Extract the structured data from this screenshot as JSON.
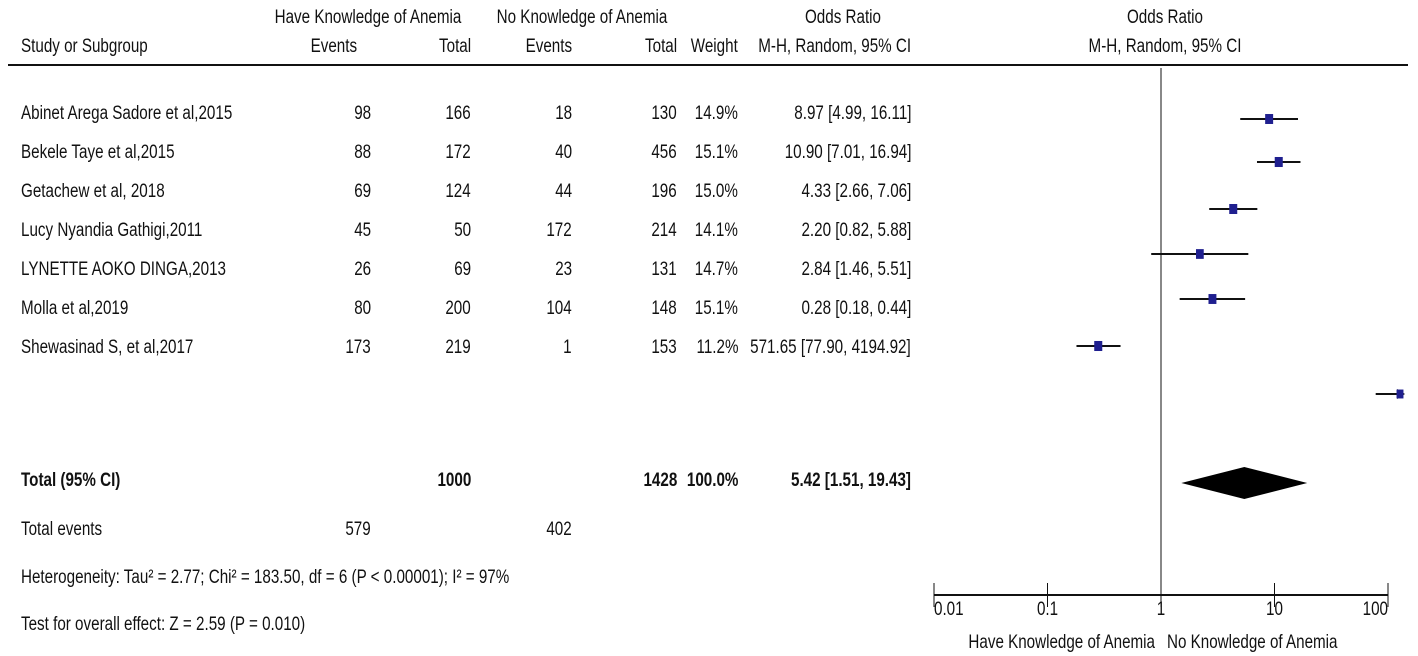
{
  "header": {
    "group1": "Have Knowledge of Anemia",
    "group2": "No Knowledge of Anemia",
    "odds_ratio": "Odds Ratio",
    "plot_title": "Odds Ratio",
    "plot_subtitle": "M-H, Random, 95% CI",
    "col_study": "Study or Subgroup",
    "col_events1": "Events",
    "col_total1": "Total",
    "col_events2": "Events",
    "col_total2": "Total",
    "col_weight": "Weight",
    "col_ci": "M-H, Random, 95% CI"
  },
  "studies": [
    {
      "name": "Abinet Arega Sadore et al,2015",
      "events1": "98",
      "total1": "166",
      "events2": "18",
      "total2": "130",
      "weight": "14.9%",
      "ci": "8.97 [4.99, 16.11]"
    },
    {
      "name": "Bekele Taye et al,2015",
      "events1": "88",
      "total1": "172",
      "events2": "40",
      "total2": "456",
      "weight": "15.1%",
      "ci": "10.90 [7.01, 16.94]"
    },
    {
      "name": "Getachew et al, 2018",
      "events1": "69",
      "total1": "124",
      "events2": "44",
      "total2": "196",
      "weight": "15.0%",
      "ci": "4.33 [2.66, 7.06]"
    },
    {
      "name": "Lucy Nyandia Gathigi,2011",
      "events1": "45",
      "total1": "50",
      "events2": "172",
      "total2": "214",
      "weight": "14.1%",
      "ci": "2.20 [0.82, 5.88]"
    },
    {
      "name": "LYNETTE AOKO DINGA,2013",
      "events1": "26",
      "total1": "69",
      "events2": "23",
      "total2": "131",
      "weight": "14.7%",
      "ci": "2.84 [1.46, 5.51]"
    },
    {
      "name": "Molla et al,2019",
      "events1": "80",
      "total1": "200",
      "events2": "104",
      "total2": "148",
      "weight": "15.1%",
      "ci": "0.28 [0.18, 0.44]"
    },
    {
      "name": "Shewasinad S, et al,2017",
      "events1": "173",
      "total1": "219",
      "events2": "1",
      "total2": "153",
      "weight": "11.2%",
      "ci": "571.65 [77.90, 4194.92]"
    }
  ],
  "total": {
    "label": "Total (95% CI)",
    "total1": "1000",
    "total2": "1428",
    "weight": "100.0%",
    "ci": "5.42 [1.51, 19.43]"
  },
  "total_events": {
    "label": "Total events",
    "events1": "579",
    "events2": "402"
  },
  "heterogeneity": "Heterogeneity: Tau² = 2.77; Chi² = 183.50, df = 6 (P < 0.00001); I² = 97%",
  "overall_effect": "Test for overall effect: Z = 2.59 (P = 0.010)",
  "axis": {
    "favours_left": "Have Knowledge of Anemia",
    "favours_right": "No Knowledge of Anemia"
  },
  "chart_data": {
    "type": "forest",
    "title": "Odds Ratio",
    "subtitle": "M-H, Random, 95% CI",
    "scale": "log",
    "xlim": [
      0.01,
      100
    ],
    "ticks": [
      0.01,
      0.1,
      1,
      10,
      100
    ],
    "tick_labels": [
      "0.01",
      "0.1",
      "1",
      "10",
      "100"
    ],
    "null_line": 1,
    "series": [
      {
        "study": "Abinet Arega Sadore et al,2015",
        "or": 8.97,
        "lower": 4.99,
        "upper": 16.11,
        "weight": 14.9
      },
      {
        "study": "Bekele Taye et al,2015",
        "or": 10.9,
        "lower": 7.01,
        "upper": 16.94,
        "weight": 15.1
      },
      {
        "study": "Getachew et al, 2018",
        "or": 4.33,
        "lower": 2.66,
        "upper": 7.06,
        "weight": 15.0
      },
      {
        "study": "Lucy Nyandia Gathigi,2011",
        "or": 2.2,
        "lower": 0.82,
        "upper": 5.88,
        "weight": 14.1
      },
      {
        "study": "LYNETTE AOKO DINGA,2013",
        "or": 2.84,
        "lower": 1.46,
        "upper": 5.51,
        "weight": 14.7
      },
      {
        "study": "Molla et al,2019",
        "or": 0.28,
        "lower": 0.18,
        "upper": 0.44,
        "weight": 15.1
      },
      {
        "study": "Shewasinad S, et al,2017",
        "or": 571.65,
        "lower": 77.9,
        "upper": 4194.92,
        "weight": 11.2
      }
    ],
    "pooled": {
      "or": 5.42,
      "lower": 1.51,
      "upper": 19.43
    },
    "marker_color": "#1f1f8f",
    "line_color": "#111111"
  }
}
